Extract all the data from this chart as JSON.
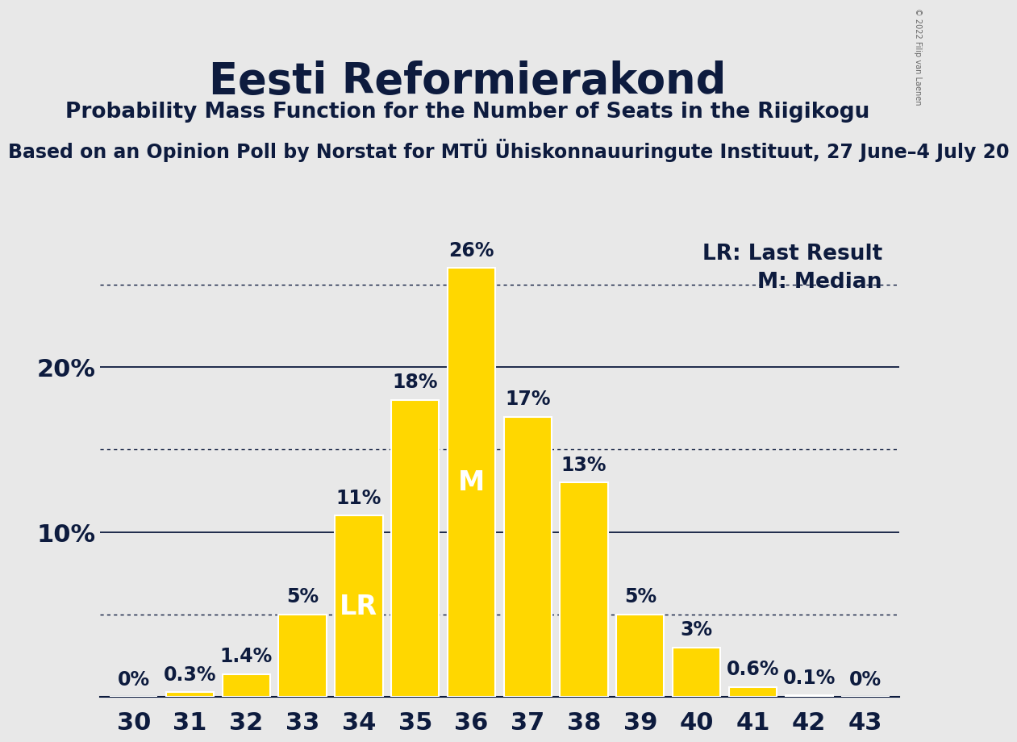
{
  "title": "Eesti Reformierakond",
  "subtitle": "Probability Mass Function for the Number of Seats in the Riigikogu",
  "subtitle2": "Based on an Opinion Poll by Norstat for MTÜ Ühiskonnauuringute Instituut, 27 June–4 July 20",
  "copyright": "© 2022 Filip van Laenen",
  "categories": [
    30,
    31,
    32,
    33,
    34,
    35,
    36,
    37,
    38,
    39,
    40,
    41,
    42,
    43
  ],
  "values": [
    0.0,
    0.3,
    1.4,
    5.0,
    11.0,
    18.0,
    26.0,
    17.0,
    13.0,
    5.0,
    3.0,
    0.6,
    0.1,
    0.0
  ],
  "bar_labels": [
    "0%",
    "0.3%",
    "1.4%",
    "5%",
    "11%",
    "18%",
    "26%",
    "17%",
    "13%",
    "5%",
    "3%",
    "0.6%",
    "0.1%",
    "0%"
  ],
  "bar_color": "#FFD700",
  "bar_edge_color": "#FFFFFF",
  "background_color": "#E8E8E8",
  "title_color": "#0D1B3E",
  "subtitle_color": "#0D1B3E",
  "subtitle2_color": "#0D1B3E",
  "axis_label_color": "#0D1B3E",
  "bar_label_color": "#0D1B3E",
  "LR_bar_index": 4,
  "M_bar_index": 6,
  "LR_label": "LR",
  "M_label": "M",
  "legend_LR": "LR: Last Result",
  "legend_M": "M: Median",
  "major_yticks": [
    10,
    20
  ],
  "dotted_yticks": [
    5,
    15,
    25
  ],
  "ylim": [
    0,
    28
  ],
  "title_fontsize": 38,
  "subtitle_fontsize": 19,
  "subtitle2_fontsize": 17,
  "tick_fontsize": 22,
  "label_fontsize": 17,
  "legend_fontsize": 19,
  "LR_M_fontsize": 24,
  "copyright_fontsize": 7
}
